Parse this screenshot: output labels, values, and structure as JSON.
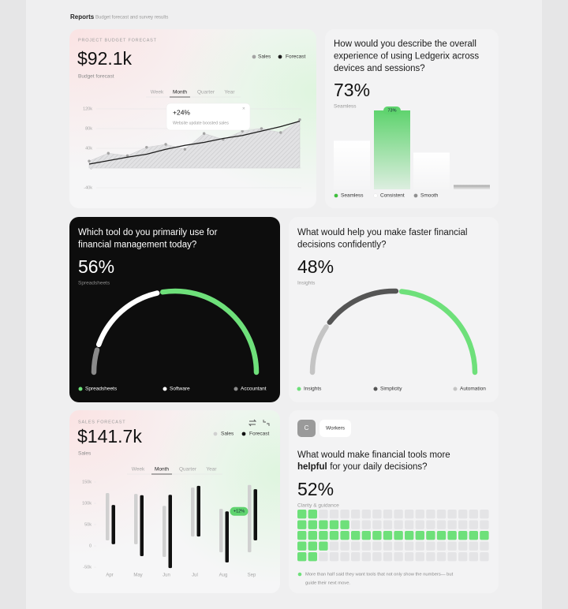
{
  "header": {
    "title": "Reports",
    "subtitle": "Budget forecast and survey results"
  },
  "chart_data": [
    {
      "type": "line",
      "eyebrow": "PROJECT BUDGET FORECAST",
      "headline": "$92.1k",
      "headline_caption": "Budget forecast",
      "tabs": [
        "Week",
        "Month",
        "Quarter",
        "Year"
      ],
      "active_tab": 1,
      "tooltip": {
        "title": "+24%",
        "text": "Website update boosted sales",
        "close": "×"
      },
      "series": [
        {
          "name": "Sales",
          "color": "#a3a3a3",
          "style": "area",
          "values": [
            14000,
            30000,
            25000,
            42000,
            48000,
            38000,
            70000,
            58000,
            75000,
            80000,
            72000,
            98000
          ]
        },
        {
          "name": "Forecast",
          "color": "#1c1c1c",
          "style": "line",
          "values": [
            8000,
            15000,
            22000,
            28000,
            38000,
            46000,
            52000,
            60000,
            66000,
            75000,
            84000,
            95000
          ]
        }
      ],
      "ylim": [
        -50000,
        130000
      ],
      "yticks": [
        {
          "value": 120000,
          "label": "120k"
        },
        {
          "value": 80000,
          "label": "80k"
        },
        {
          "value": 40000,
          "label": "40k"
        },
        0,
        {
          "value": -40000,
          "label": "-40k"
        }
      ],
      "grid": true
    },
    {
      "type": "bar",
      "question": [
        "How would you describe the overall",
        "experience of using Ledgerix across",
        "devices and sessions?"
      ],
      "headline": "73%",
      "headline_caption": "Seamless",
      "values": [
        45,
        73,
        34,
        4
      ],
      "value_labels": [
        null,
        "73%",
        null,
        null
      ],
      "colors": [
        "#ffffff",
        "#5fd36e",
        "#ffffff",
        "#a6a6a6"
      ],
      "legend": [
        {
          "name": "Seamless",
          "color": "#3cc13b"
        },
        {
          "name": "Consistent",
          "color": "#ffffff"
        },
        {
          "name": "Smooth",
          "color": "#8e8e8e"
        }
      ]
    },
    {
      "type": "gauge",
      "theme": "dark",
      "question": [
        "Which tool do you primarily use for",
        "financial management today?"
      ],
      "headline": "56%",
      "headline_caption": "Spreadsheets",
      "segments": [
        {
          "name": "Spreadsheets",
          "color": "#6ee07a",
          "value": 56
        },
        {
          "name": "Software",
          "color": "#ffffff",
          "value": 34
        },
        {
          "name": "Accountant",
          "color": "#8a8a8a",
          "value": 10
        }
      ]
    },
    {
      "type": "gauge",
      "theme": "light",
      "question": [
        "What would help you make faster financial",
        "decisions confidently?"
      ],
      "headline": "48%",
      "headline_caption": "Insights",
      "segments": [
        {
          "name": "Insights",
          "color": "#6ee07a",
          "value": 48
        },
        {
          "name": "Simplicity",
          "color": "#555555",
          "value": 32
        },
        {
          "name": "Automation",
          "color": "#c4c4c4",
          "value": 20
        }
      ]
    },
    {
      "type": "range_bar",
      "eyebrow": "SALES FORECAST",
      "headline": "$141.7k",
      "headline_caption": "Sales",
      "tabs": [
        "Week",
        "Month",
        "Quarter",
        "Year"
      ],
      "active_tab": 1,
      "categories": [
        "Apr",
        "May",
        "Jun",
        "Jul",
        "Aug",
        "Sep"
      ],
      "series": [
        {
          "name": "Sales",
          "color": "#d0d0d0",
          "low": [
            13000,
            4000,
            -26000,
            22000,
            -15000,
            -15000
          ],
          "high": [
            124000,
            122000,
            94000,
            137000,
            87000,
            143000
          ]
        },
        {
          "name": "Forecast",
          "color": "#111111",
          "low": [
            4000,
            -24000,
            -52000,
            22000,
            -39000,
            13000
          ],
          "high": [
            96000,
            119000,
            120000,
            141000,
            81000,
            133000
          ]
        }
      ],
      "annotations": [
        {
          "text": "+12%",
          "series": 1,
          "index": 4
        }
      ],
      "ylim": [
        -60000,
        160000
      ],
      "yticks": [
        {
          "value": 150000,
          "label": "150k"
        },
        {
          "value": 100000,
          "label": "100k"
        },
        {
          "value": 50000,
          "label": "50k"
        },
        0,
        {
          "value": -50000,
          "label": "-50k"
        }
      ]
    },
    {
      "type": "waffle",
      "avatar": "C",
      "chip": "Workers",
      "question": [
        "What would make financial tools more"
      ],
      "question_bold": "helpful",
      "question_end": "for your daily decisions?",
      "headline": "52%",
      "headline_caption": "Clarity & guidance",
      "columns": 18,
      "filled": [
        2,
        5,
        18,
        3,
        2
      ],
      "color": "#6ee07a",
      "empty_color": "#e4e4e6",
      "note": [
        "More than half said they want tools that not only show the numbers— but",
        "guide their next move."
      ]
    }
  ]
}
